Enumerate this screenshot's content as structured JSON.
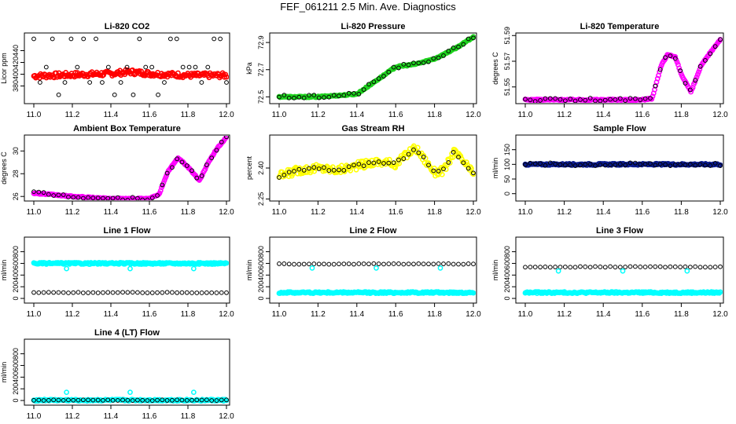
{
  "page_title": "FEF_061211  2.5 Min. Ave. Diagnostics",
  "colors": {
    "black": "#000000",
    "red": "#ff0000",
    "green": "#1fd21f",
    "magenta": "#ff00ff",
    "yellow": "#ffff00",
    "navy": "#0a1a8c",
    "cyan": "#00ffff"
  },
  "chart_data": [
    {
      "type": "scatter",
      "title": "Li-820 CO2",
      "ylabel": "Licor ppm",
      "xlim": [
        11.0,
        12.0
      ],
      "ylim": [
        350,
        470
      ],
      "xticks": [
        "11.0",
        "11.2",
        "11.4",
        "11.6",
        "11.8",
        "12.0"
      ],
      "yticks": [
        "380",
        "400",
        "420",
        "440"
      ],
      "series": [
        {
          "name": "fine",
          "color": "red",
          "kind": "band",
          "x": [
            11.0,
            11.2,
            11.4,
            11.5,
            11.6,
            11.8,
            12.0
          ],
          "y": [
            397,
            399,
            401,
            404,
            401,
            398,
            398
          ]
        },
        {
          "name": "avg",
          "color": "black",
          "kind": "tiers",
          "levels": [
            460,
            412,
            386,
            365
          ]
        }
      ]
    },
    {
      "type": "scatter",
      "title": "Li-820 Pressure",
      "ylabel": "kPa",
      "xlim": [
        11.0,
        12.0
      ],
      "ylim": [
        72.45,
        72.97
      ],
      "xticks": [
        "11.0",
        "11.2",
        "11.4",
        "11.6",
        "11.8",
        "12.0"
      ],
      "yticks": [
        "72.5",
        "72.7",
        "72.9"
      ],
      "series": [
        {
          "name": "fine",
          "color": "green",
          "kind": "line",
          "x": [
            11.0,
            11.2,
            11.4,
            11.5,
            11.6,
            11.7,
            11.8,
            11.9,
            12.0
          ],
          "y": [
            72.5,
            72.5,
            72.52,
            72.62,
            72.72,
            72.74,
            72.78,
            72.85,
            72.94
          ]
        },
        {
          "name": "avg",
          "color": "black",
          "kind": "points"
        }
      ]
    },
    {
      "type": "scatter",
      "title": "Li-820 Temperature",
      "ylabel": "degrees C",
      "xlim": [
        11.0,
        12.0
      ],
      "ylim": [
        51.537,
        51.592
      ],
      "xticks": [
        "11.0",
        "11.2",
        "11.4",
        "11.6",
        "11.8",
        "12.0"
      ],
      "yticks": [
        "51.55",
        "51.57",
        "51.59"
      ],
      "series": [
        {
          "name": "fine",
          "color": "magenta",
          "kind": "line",
          "x": [
            11.0,
            11.2,
            11.4,
            11.6,
            11.65,
            11.7,
            11.73,
            11.77,
            11.8,
            11.85,
            11.9,
            11.95,
            12.0
          ],
          "y": [
            51.54,
            51.54,
            51.54,
            51.54,
            51.541,
            51.568,
            51.575,
            51.573,
            51.56,
            51.546,
            51.566,
            51.577,
            51.587
          ]
        },
        {
          "name": "avg",
          "color": "black",
          "kind": "points"
        }
      ]
    },
    {
      "type": "scatter",
      "title": "Ambient Box Temperature",
      "ylabel": "degrees C",
      "xlim": [
        11.0,
        12.0
      ],
      "ylim": [
        25.6,
        31.4
      ],
      "xticks": [
        "11.0",
        "11.2",
        "11.4",
        "11.6",
        "11.8",
        "12.0"
      ],
      "yticks": [
        "26",
        "28",
        "30"
      ],
      "series": [
        {
          "name": "fine",
          "color": "magenta",
          "kind": "line",
          "x": [
            11.0,
            11.2,
            11.4,
            11.6,
            11.65,
            11.7,
            11.75,
            11.8,
            11.86,
            11.9,
            11.95,
            12.0
          ],
          "y": [
            26.3,
            26.0,
            25.8,
            25.8,
            26.2,
            28.3,
            29.4,
            28.6,
            27.4,
            28.8,
            30.2,
            31.2
          ]
        },
        {
          "name": "avg",
          "color": "black",
          "kind": "points"
        }
      ]
    },
    {
      "type": "scatter",
      "title": "Gas Stream RH",
      "ylabel": "percent",
      "xlim": [
        11.0,
        12.0
      ],
      "ylim": [
        2.24,
        2.56
      ],
      "xticks": [
        "11.0",
        "11.2",
        "11.4",
        "11.6",
        "11.8",
        "12.0"
      ],
      "yticks": [
        "2.25",
        "2.40"
      ],
      "series": [
        {
          "name": "fine",
          "color": "yellow",
          "kind": "band",
          "x": [
            11.0,
            11.1,
            11.2,
            11.3,
            11.4,
            11.5,
            11.6,
            11.65,
            11.7,
            11.75,
            11.8,
            11.85,
            11.9,
            11.95,
            12.0
          ],
          "y": [
            2.36,
            2.39,
            2.4,
            2.39,
            2.41,
            2.43,
            2.42,
            2.46,
            2.5,
            2.44,
            2.38,
            2.39,
            2.48,
            2.43,
            2.37
          ]
        },
        {
          "name": "avg",
          "color": "black",
          "kind": "points"
        }
      ]
    },
    {
      "type": "scatter",
      "title": "Sample Flow",
      "ylabel": "ml/min",
      "xlim": [
        11.0,
        12.0
      ],
      "ylim": [
        -25,
        200
      ],
      "xticks": [
        "11.0",
        "11.2",
        "11.4",
        "11.6",
        "11.8",
        "12.0"
      ],
      "yticks": [
        "0",
        "50",
        "100",
        "150"
      ],
      "series": [
        {
          "name": "fine",
          "color": "navy",
          "kind": "band",
          "x": [
            11.0,
            12.0
          ],
          "y": [
            100,
            100
          ]
        },
        {
          "name": "avg",
          "color": "black",
          "kind": "points"
        }
      ]
    },
    {
      "type": "scatter",
      "title": "Line 1 Flow",
      "ylabel": "ml/min",
      "xlim": [
        11.0,
        12.0
      ],
      "ylim": [
        -80,
        1050
      ],
      "xticks": [
        "11.0",
        "11.2",
        "11.4",
        "11.6",
        "11.8",
        "12.0"
      ],
      "yticks": [
        "0",
        "200",
        "400",
        "600",
        "800"
      ],
      "series": [
        {
          "name": "cyan",
          "color": "cyan",
          "kind": "band",
          "x": [
            11.0,
            12.0
          ],
          "y": [
            600,
            600
          ]
        },
        {
          "name": "black",
          "color": "black",
          "kind": "points",
          "x": [
            11.0,
            12.0
          ],
          "y": [
            100,
            100
          ]
        }
      ]
    },
    {
      "type": "scatter",
      "title": "Line 2 Flow",
      "ylabel": "ml/min",
      "xlim": [
        11.0,
        12.0
      ],
      "ylim": [
        -80,
        1050
      ],
      "xticks": [
        "11.0",
        "11.2",
        "11.4",
        "11.6",
        "11.8",
        "12.0"
      ],
      "yticks": [
        "0",
        "200",
        "400",
        "600",
        "800"
      ],
      "series": [
        {
          "name": "cyan",
          "color": "cyan",
          "kind": "band",
          "x": [
            11.0,
            12.0
          ],
          "y": [
            100,
            100
          ]
        },
        {
          "name": "black",
          "color": "black",
          "kind": "points",
          "x": [
            11.0,
            12.0
          ],
          "y": [
            590,
            590
          ]
        }
      ]
    },
    {
      "type": "scatter",
      "title": "Line 3 Flow",
      "ylabel": "ml/min",
      "xlim": [
        11.0,
        12.0
      ],
      "ylim": [
        -80,
        1050
      ],
      "xticks": [
        "11.0",
        "11.2",
        "11.4",
        "11.6",
        "11.8",
        "12.0"
      ],
      "yticks": [
        "0",
        "200",
        "400",
        "600",
        "800"
      ],
      "series": [
        {
          "name": "cyan",
          "color": "cyan",
          "kind": "band",
          "x": [
            11.0,
            12.0
          ],
          "y": [
            100,
            100
          ]
        },
        {
          "name": "black",
          "color": "black",
          "kind": "points",
          "x": [
            11.0,
            12.0
          ],
          "y": [
            540,
            540
          ]
        }
      ]
    },
    {
      "type": "scatter",
      "title": "Line 4 (LT) Flow",
      "ylabel": "ml/min",
      "xlim": [
        11.0,
        12.0
      ],
      "ylim": [
        -80,
        1050
      ],
      "xticks": [
        "11.0",
        "11.2",
        "11.4",
        "11.6",
        "11.8",
        "12.0"
      ],
      "yticks": [
        "0",
        "200",
        "400",
        "600",
        "800"
      ],
      "series": [
        {
          "name": "cyan",
          "color": "cyan",
          "kind": "band",
          "x": [
            11.0,
            12.0
          ],
          "y": [
            5,
            5
          ]
        },
        {
          "name": "black",
          "color": "black",
          "kind": "points",
          "x": [
            11.0,
            12.0
          ],
          "y": [
            5,
            5
          ]
        }
      ]
    }
  ]
}
